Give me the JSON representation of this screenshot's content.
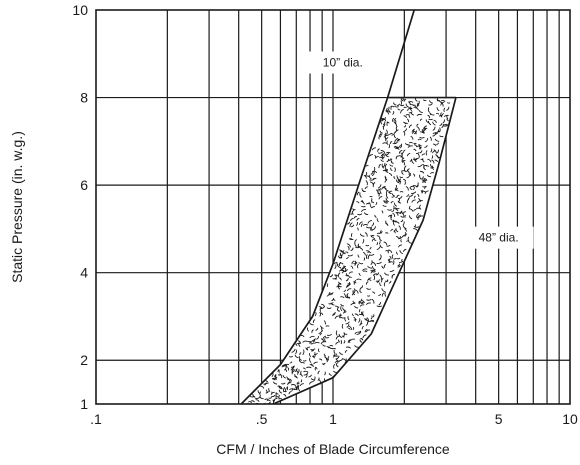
{
  "chart_data": {
    "type": "line",
    "xscale": "log",
    "xlim": [
      0.1,
      10
    ],
    "ylim": [
      1,
      10
    ],
    "xlabel": "CFM / Inches of Blade Circumference",
    "ylabel": "Static Pressure (in. w.g.)",
    "x_ticks": [
      {
        "value": 0.1,
        "label": ".1"
      },
      {
        "value": 0.5,
        "label": ".5"
      },
      {
        "value": 1,
        "label": "1"
      },
      {
        "value": 5,
        "label": "5"
      },
      {
        "value": 10,
        "label": "10"
      }
    ],
    "y_ticks": [
      {
        "value": 1,
        "label": "1"
      },
      {
        "value": 2,
        "label": "2"
      },
      {
        "value": 4,
        "label": "4"
      },
      {
        "value": 6,
        "label": "6"
      },
      {
        "value": 8,
        "label": "8"
      },
      {
        "value": 10,
        "label": "10"
      }
    ],
    "series": [
      {
        "name": "10” dia.",
        "points": [
          [
            0.41,
            1.0
          ],
          [
            0.6,
            1.9
          ],
          [
            0.82,
            3.0
          ],
          [
            1.0,
            4.2
          ],
          [
            1.3,
            6.1
          ],
          [
            1.7,
            8.0
          ],
          [
            2.2,
            10.0
          ]
        ]
      },
      {
        "name": "48” dia.",
        "points": [
          [
            0.56,
            1.0
          ],
          [
            1.0,
            1.6
          ],
          [
            1.45,
            2.6
          ],
          [
            1.9,
            4.0
          ],
          [
            2.4,
            5.2
          ],
          [
            2.8,
            6.5
          ],
          [
            3.3,
            8.0
          ]
        ]
      }
    ],
    "band": {
      "ybottom": 1.0,
      "ytop": 8.0,
      "top_x": [
        1.7,
        3.3
      ],
      "fill": "stippled"
    },
    "annotations": [
      {
        "text": "10” dia.",
        "x": 1.1,
        "y": 8.8
      },
      {
        "text": "48” dia.",
        "x": 5.0,
        "y": 4.8
      }
    ],
    "grid": true,
    "legend": "none",
    "colors": {
      "line": "#1a1a1a",
      "background": "#ffffff"
    }
  }
}
